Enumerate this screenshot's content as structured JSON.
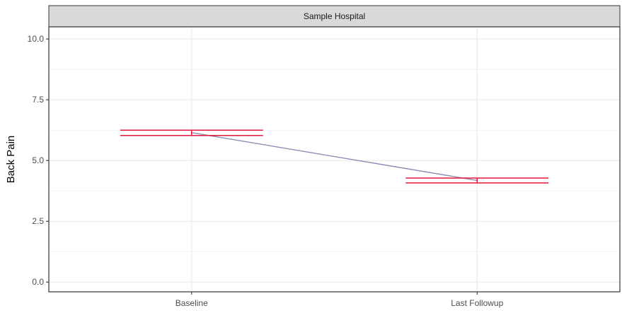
{
  "chart_data": {
    "type": "line",
    "facet_label": "Sample Hospital",
    "title": "",
    "xlabel": "",
    "ylabel": "Back Pain",
    "categories": [
      "Baseline",
      "Last Followup"
    ],
    "series": [
      {
        "values": [
          6.15,
          4.18
        ],
        "error_bars": [
          {
            "low": 6.03,
            "high": 6.25
          },
          {
            "low": 4.08,
            "high": 4.28
          }
        ]
      }
    ],
    "ylim": [
      -0.4,
      10.5
    ],
    "yticks": [
      0.0,
      2.5,
      5.0,
      7.5,
      10.0
    ],
    "ytick_labels": [
      "0.0",
      "2.5",
      "5.0",
      "7.5",
      "10.0"
    ],
    "grid": true,
    "legend": "none",
    "colors": {
      "errorbar": "#e8143c",
      "line": "#8a8fb0",
      "strip_bg": "#d9d9d9",
      "grid": "#ebebeb",
      "panel_border": "#333333"
    }
  }
}
